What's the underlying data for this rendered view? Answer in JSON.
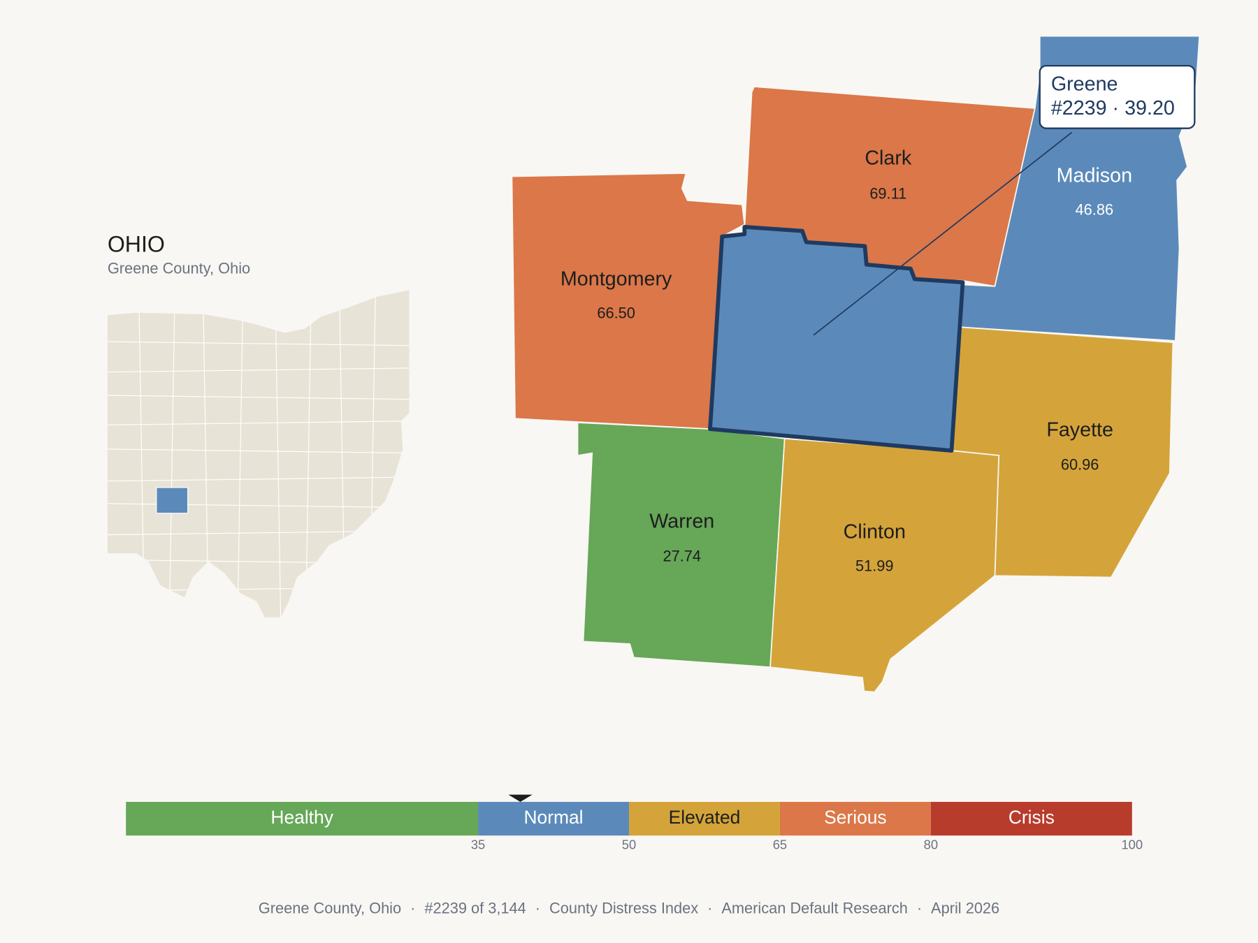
{
  "inset": {
    "title": "OHIO",
    "subtitle": "Greene County, Ohio"
  },
  "counties": [
    {
      "name": "Montgomery",
      "score": 66.5,
      "score_label": "66.50"
    },
    {
      "name": "Clark",
      "score": 69.11,
      "score_label": "69.11"
    },
    {
      "name": "Madison",
      "score": 46.86,
      "score_label": "46.86"
    },
    {
      "name": "Greene",
      "score": 39.2,
      "score_label": "39.20"
    },
    {
      "name": "Fayette",
      "score": 60.96,
      "score_label": "60.96"
    },
    {
      "name": "Warren",
      "score": 27.74,
      "score_label": "27.74"
    },
    {
      "name": "Clinton",
      "score": 51.99,
      "score_label": "51.99"
    }
  ],
  "callout": {
    "title": "Greene",
    "detail": "#2239 · 39.20"
  },
  "scale": {
    "lim": [
      0,
      100
    ],
    "bands": [
      {
        "name": "Healthy",
        "color": "#66a758",
        "max": 35
      },
      {
        "name": "Normal",
        "color": "#5b8aba",
        "max": 50
      },
      {
        "name": "Elevated",
        "color": "#d4a43a",
        "max": 65
      },
      {
        "name": "Serious",
        "color": "#db7749",
        "max": 80
      },
      {
        "name": "Crisis",
        "color": "#b83c2c",
        "max": 100
      }
    ]
  },
  "footer": {
    "items": [
      "Greene County, Ohio",
      "#2239 of 3,144",
      "County Distress Index",
      "American Default Research",
      "April 2026"
    ],
    "separator": "·"
  }
}
